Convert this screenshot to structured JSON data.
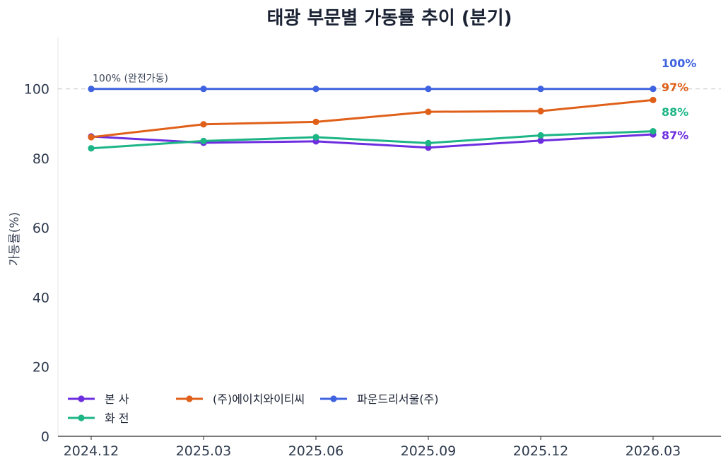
{
  "chart_data": {
    "type": "line",
    "title": "태광 부문별 가동률 추이 (분기)",
    "xlabel": "",
    "ylabel": "가동률(%)",
    "categories": [
      "2024.12",
      "2025.03",
      "2025.06",
      "2025.09",
      "2025.12",
      "2026.03"
    ],
    "ylim": [
      0,
      115
    ],
    "yticks": [
      0,
      20,
      40,
      60,
      80,
      100
    ],
    "grid": false,
    "legend_position": "bottom-left",
    "reference_line": {
      "value": 100,
      "label": "100% (완전가동)",
      "color": "#cccccc"
    },
    "series": [
      {
        "name": "본 사",
        "color": "#6d2ee0",
        "values": [
          86.3,
          84.5,
          84.9,
          83.1,
          85.1,
          86.9
        ],
        "end_label": "87%"
      },
      {
        "name": "화 전",
        "color": "#1db586",
        "values": [
          82.9,
          85.0,
          86.1,
          84.4,
          86.6,
          87.8
        ],
        "end_label": "88%"
      },
      {
        "name": "(주)에이치와이티씨",
        "color": "#e0601a",
        "values": [
          86.1,
          89.8,
          90.5,
          93.4,
          93.6,
          96.8
        ],
        "end_label": "97%"
      },
      {
        "name": "파운드리서울(주)",
        "color": "#3f63e0",
        "values": [
          100,
          100,
          100,
          100,
          100,
          100
        ],
        "end_label": "100%"
      }
    ]
  }
}
